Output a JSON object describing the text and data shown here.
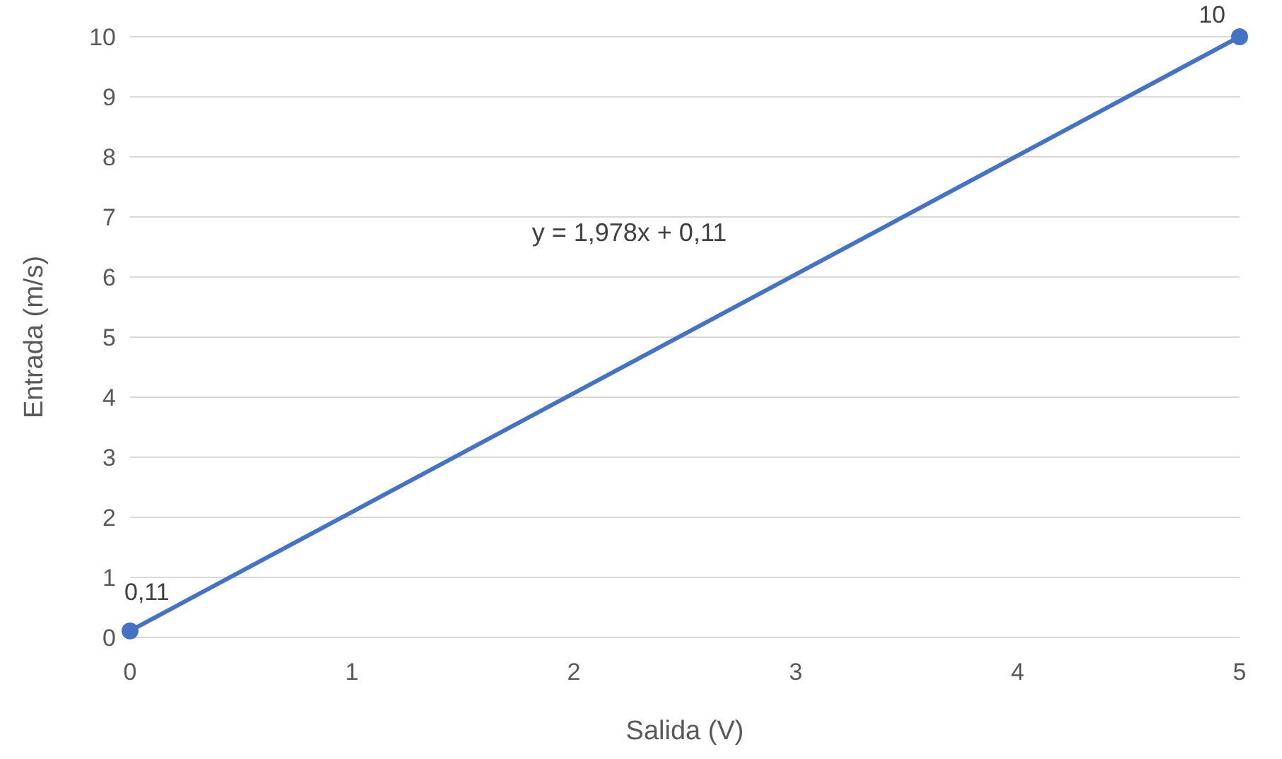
{
  "chart_data": {
    "type": "line",
    "xlabel": "Salida (V)",
    "ylabel": "Entrada (m/s)",
    "x": [
      0,
      5
    ],
    "series": [
      {
        "color": "#4472c4",
        "values": [
          0.11,
          10
        ],
        "value_labels": [
          "0,11",
          "10"
        ]
      }
    ],
    "xlim": [
      0,
      5
    ],
    "xticks": [
      0,
      1,
      2,
      3,
      4,
      5
    ],
    "ylim": [
      0,
      10
    ],
    "yticks": [
      0,
      1,
      2,
      3,
      4,
      5,
      6,
      7,
      8,
      9,
      10
    ],
    "grid": "y",
    "marker": "circle",
    "line_style": "solid",
    "annotations": [
      "y = 1,978x + 0,11"
    ]
  }
}
